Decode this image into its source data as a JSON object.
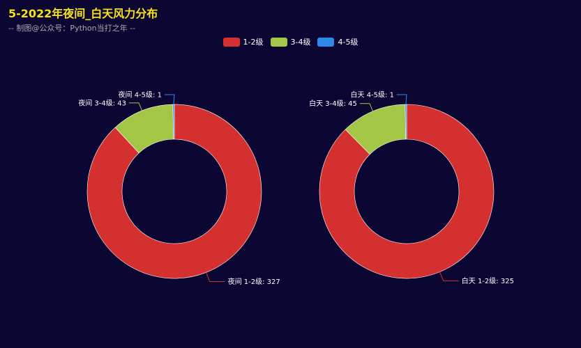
{
  "title": "5-2022年夜间_白天风力分布",
  "subtitle": "-- 制图@公众号：Python当打之年 --",
  "colors": {
    "background": "#0c0633",
    "title": "#f7e11b",
    "subtitle": "#aaaaaa"
  },
  "chart_data": {
    "type": "pie",
    "variant": "donut",
    "legend": {
      "placement": "top-center",
      "items": [
        {
          "label": "1-2级",
          "color": "#d4302f"
        },
        {
          "label": "3-4级",
          "color": "#a4c646"
        },
        {
          "label": "4-5级",
          "color": "#2e8ae6"
        }
      ]
    },
    "charts": [
      {
        "name": "夜间",
        "slices": [
          {
            "category": "1-2级",
            "value": 327,
            "label": "夜间 1-2级: 327"
          },
          {
            "category": "3-4级",
            "value": 43,
            "label": "夜间 3-4级: 43"
          },
          {
            "category": "4-5级",
            "value": 1,
            "label": "夜间 4-5级: 1"
          }
        ]
      },
      {
        "name": "白天",
        "slices": [
          {
            "category": "1-2级",
            "value": 325,
            "label": "白天 1-2级: 325"
          },
          {
            "category": "3-4级",
            "value": 45,
            "label": "白天 3-4级: 45"
          },
          {
            "category": "4-5级",
            "value": 1,
            "label": "白天 4-5级: 1"
          }
        ]
      }
    ]
  }
}
